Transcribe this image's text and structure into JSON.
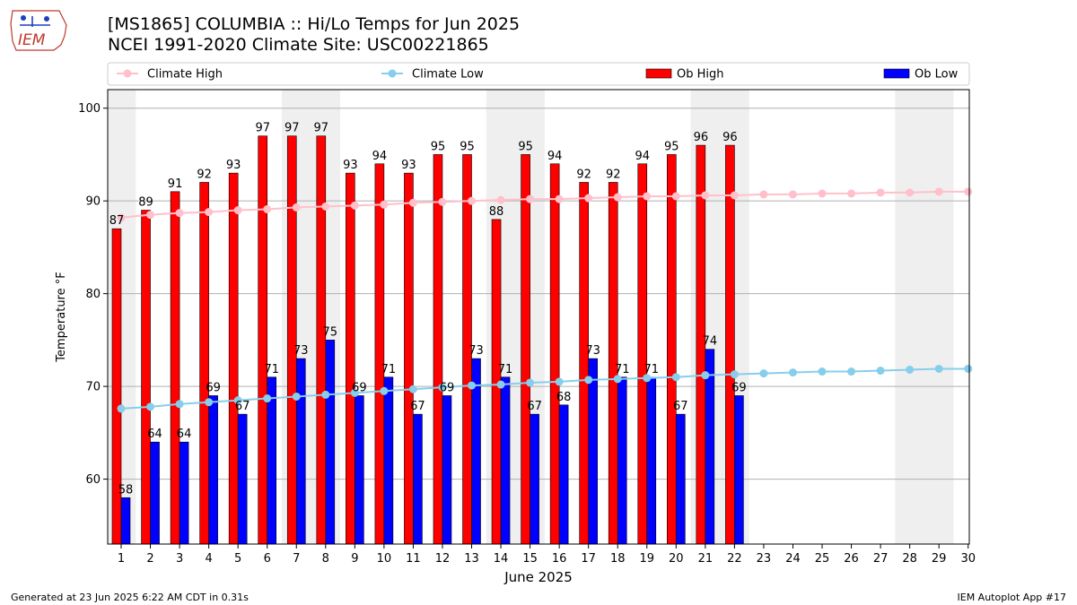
{
  "header": {
    "title_line1": "[MS1865] COLUMBIA :: Hi/Lo Temps for Jun 2025",
    "title_line2": "NCEI 1991-2020 Climate Site: USC00221865"
  },
  "logo": {
    "text": "IEM",
    "icon": "iem-iowa-logo"
  },
  "footer": {
    "left": "Generated at 23 Jun 2025 6:22 AM CDT in 0.31s",
    "right": "IEM Autoplot App #17"
  },
  "colors": {
    "ob_high": "#ff0000",
    "ob_low": "#0000ff",
    "climate_high": "#ffc0cb",
    "climate_low": "#87ceeb",
    "weekend_shade": "#efefef",
    "grid": "#b0b0b0"
  },
  "chart_data": {
    "type": "bar",
    "xlabel": "June 2025",
    "ylabel": "Temperature °F",
    "ylim": [
      53,
      102
    ],
    "yticks": [
      60,
      70,
      80,
      90,
      100
    ],
    "grid": "horizontal",
    "legend_position": "top",
    "categories": [
      "1",
      "2",
      "3",
      "4",
      "5",
      "6",
      "7",
      "8",
      "9",
      "10",
      "11",
      "12",
      "13",
      "14",
      "15",
      "16",
      "17",
      "18",
      "19",
      "20",
      "21",
      "22",
      "23",
      "24",
      "25",
      "26",
      "27",
      "28",
      "29",
      "30"
    ],
    "weekend_days": [
      1,
      7,
      8,
      14,
      15,
      21,
      22,
      28,
      29
    ],
    "series": [
      {
        "name": "Ob High",
        "kind": "bar",
        "values": [
          87,
          89,
          91,
          92,
          93,
          97,
          97,
          97,
          93,
          94,
          93,
          95,
          95,
          88,
          95,
          94,
          92,
          92,
          94,
          95,
          96,
          96,
          null,
          null,
          null,
          null,
          null,
          null,
          null,
          null
        ]
      },
      {
        "name": "Ob Low",
        "kind": "bar",
        "values": [
          58,
          64,
          64,
          69,
          67,
          71,
          73,
          75,
          69,
          71,
          67,
          69,
          73,
          71,
          67,
          68,
          73,
          71,
          71,
          67,
          74,
          69,
          null,
          null,
          null,
          null,
          null,
          null,
          null,
          null
        ]
      },
      {
        "name": "Climate High",
        "kind": "line",
        "values": [
          88.2,
          88.5,
          88.7,
          88.8,
          89.0,
          89.1,
          89.3,
          89.4,
          89.5,
          89.6,
          89.8,
          89.9,
          90.0,
          90.1,
          90.2,
          90.2,
          90.3,
          90.4,
          90.5,
          90.5,
          90.6,
          90.6,
          90.7,
          90.7,
          90.8,
          90.8,
          90.9,
          90.9,
          91.0,
          91.0
        ]
      },
      {
        "name": "Climate Low",
        "kind": "line",
        "values": [
          67.6,
          67.8,
          68.1,
          68.3,
          68.5,
          68.7,
          68.9,
          69.1,
          69.3,
          69.5,
          69.7,
          69.9,
          70.1,
          70.2,
          70.4,
          70.5,
          70.7,
          70.8,
          70.9,
          71.0,
          71.2,
          71.3,
          71.4,
          71.5,
          71.6,
          71.6,
          71.7,
          71.8,
          71.9,
          71.9
        ]
      }
    ]
  }
}
